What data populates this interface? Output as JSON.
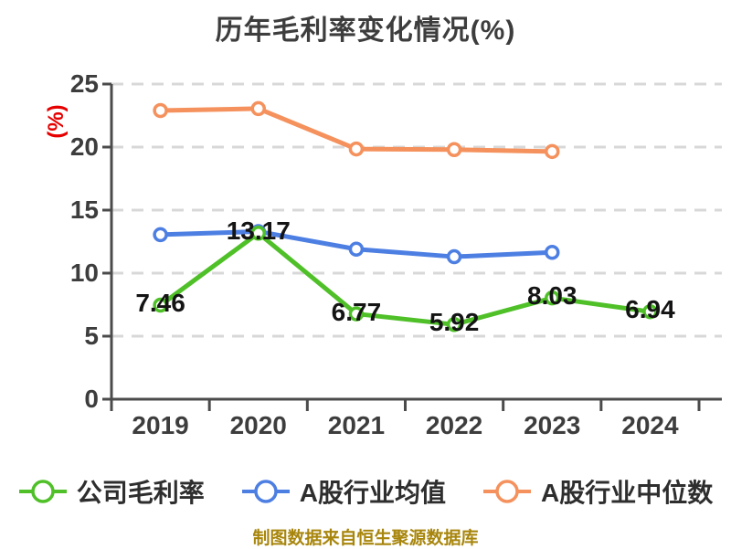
{
  "title": "历年毛利率变化情况(%)",
  "y_axis_label": "(%)",
  "footer": "制图数据来自恒生聚源数据库",
  "colors": {
    "company": "#4fc028",
    "industry_avg": "#4d7fe3",
    "industry_median": "#f5915c",
    "grid": "#d8d8d8",
    "axis": "#4b4b4b",
    "tick_text": "#3d3d3d",
    "title_text": "#3d3d3d",
    "ylabel_text": "#e60000",
    "data_label": "#141414",
    "footer_text": "#a8860d"
  },
  "legend": [
    {
      "label": "公司毛利率",
      "color": "#4fc028"
    },
    {
      "label": "A股行业均值",
      "color": "#4d7fe3"
    },
    {
      "label": "A股行业中位数",
      "color": "#f5915c"
    }
  ],
  "chart_data": {
    "type": "line",
    "title": "历年毛利率变化情况(%)",
    "xlabel": "",
    "ylabel": "(%)",
    "x": [
      "2019",
      "2020",
      "2021",
      "2022",
      "2023",
      "2024"
    ],
    "y_ticks": [
      0,
      5,
      10,
      15,
      20,
      25
    ],
    "ylim": [
      0,
      25
    ],
    "grid": "horizontal-dashed",
    "legend_position": "bottom",
    "series": [
      {
        "name": "公司毛利率",
        "color": "#4fc028",
        "labels_shown": true,
        "values": [
          7.46,
          13.17,
          6.77,
          5.92,
          8.03,
          6.94
        ]
      },
      {
        "name": "A股行业均值",
        "color": "#4d7fe3",
        "labels_shown": false,
        "values": [
          13.05,
          13.3,
          11.9,
          11.3,
          11.65
        ]
      },
      {
        "name": "A股行业中位数",
        "color": "#f5915c",
        "labels_shown": false,
        "values": [
          22.9,
          23.05,
          19.85,
          19.8,
          19.65
        ]
      }
    ]
  }
}
